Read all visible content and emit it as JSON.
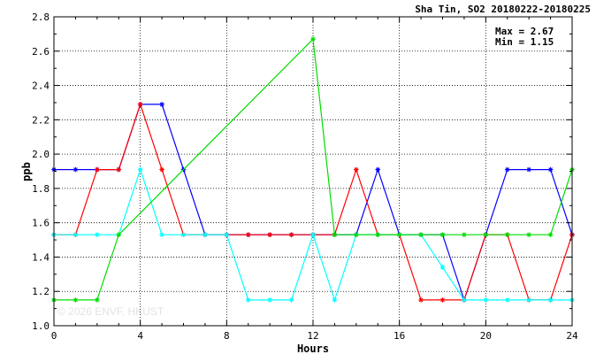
{
  "chart_data": {
    "type": "line",
    "title": "Sha Tin, SO2 20180222-20180225",
    "xlabel": "Hours",
    "ylabel": "ppb",
    "xlim": [
      0,
      24
    ],
    "ylim": [
      1.0,
      2.8
    ],
    "x_ticks": [
      "0",
      "4",
      "8",
      "12",
      "16",
      "20",
      "24"
    ],
    "y_ticks": [
      "1.0",
      "1.2",
      "1.4",
      "1.6",
      "1.8",
      "2.0",
      "2.2",
      "2.4",
      "2.6",
      "2.8"
    ],
    "grid": true,
    "annotations": {
      "max": "Max = 2.67",
      "min": "Min = 1.15"
    },
    "watermark": "© 2026 ENVF, HKUST",
    "series": [
      {
        "color": "#0000ff",
        "x": [
          0,
          1,
          2,
          3,
          4,
          5,
          6,
          7,
          8,
          9,
          10,
          11,
          12,
          13,
          14,
          15,
          16,
          17,
          18,
          19,
          20,
          21,
          22,
          23,
          24
        ],
        "values": [
          1.91,
          1.91,
          1.91,
          1.91,
          2.29,
          2.29,
          1.91,
          1.53,
          1.53,
          1.53,
          1.53,
          1.53,
          1.53,
          1.53,
          1.53,
          1.91,
          1.53,
          1.53,
          1.53,
          1.15,
          1.53,
          1.91,
          1.91,
          1.91,
          1.53
        ]
      },
      {
        "color": "#ff0000",
        "x": [
          0,
          1,
          2,
          3,
          4,
          5,
          6,
          7,
          8,
          9,
          10,
          11,
          12,
          13,
          14,
          15,
          16,
          17,
          18,
          19,
          20,
          21,
          22,
          23,
          24
        ],
        "values": [
          1.53,
          1.53,
          1.91,
          1.91,
          2.29,
          1.91,
          1.53,
          1.53,
          1.53,
          1.53,
          1.53,
          1.53,
          1.53,
          1.53,
          1.91,
          1.53,
          1.53,
          1.15,
          1.15,
          1.15,
          1.53,
          1.53,
          1.15,
          1.15,
          1.53
        ]
      },
      {
        "color": "#00ffff",
        "x": [
          0,
          1,
          2,
          3,
          4,
          5,
          6,
          7,
          8,
          9,
          10,
          11,
          12,
          13,
          14,
          15,
          16,
          17,
          18,
          19,
          20,
          21,
          22,
          23,
          24
        ],
        "values": [
          1.53,
          1.53,
          1.53,
          1.53,
          1.91,
          1.53,
          1.53,
          1.53,
          1.53,
          1.15,
          1.15,
          1.15,
          1.53,
          1.15,
          1.53,
          1.53,
          1.53,
          1.53,
          1.34,
          1.15,
          1.15,
          1.15,
          1.15,
          1.15,
          1.15
        ]
      },
      {
        "color": "#00dd00",
        "x": [
          0,
          1,
          2,
          3,
          12,
          13,
          14,
          15,
          16,
          17,
          18,
          19,
          20,
          21,
          22,
          23,
          24
        ],
        "values": [
          1.15,
          1.15,
          1.15,
          1.53,
          2.67,
          1.53,
          1.53,
          1.53,
          1.53,
          1.53,
          1.53,
          1.53,
          1.53,
          1.53,
          1.53,
          1.53,
          1.91
        ]
      }
    ]
  }
}
